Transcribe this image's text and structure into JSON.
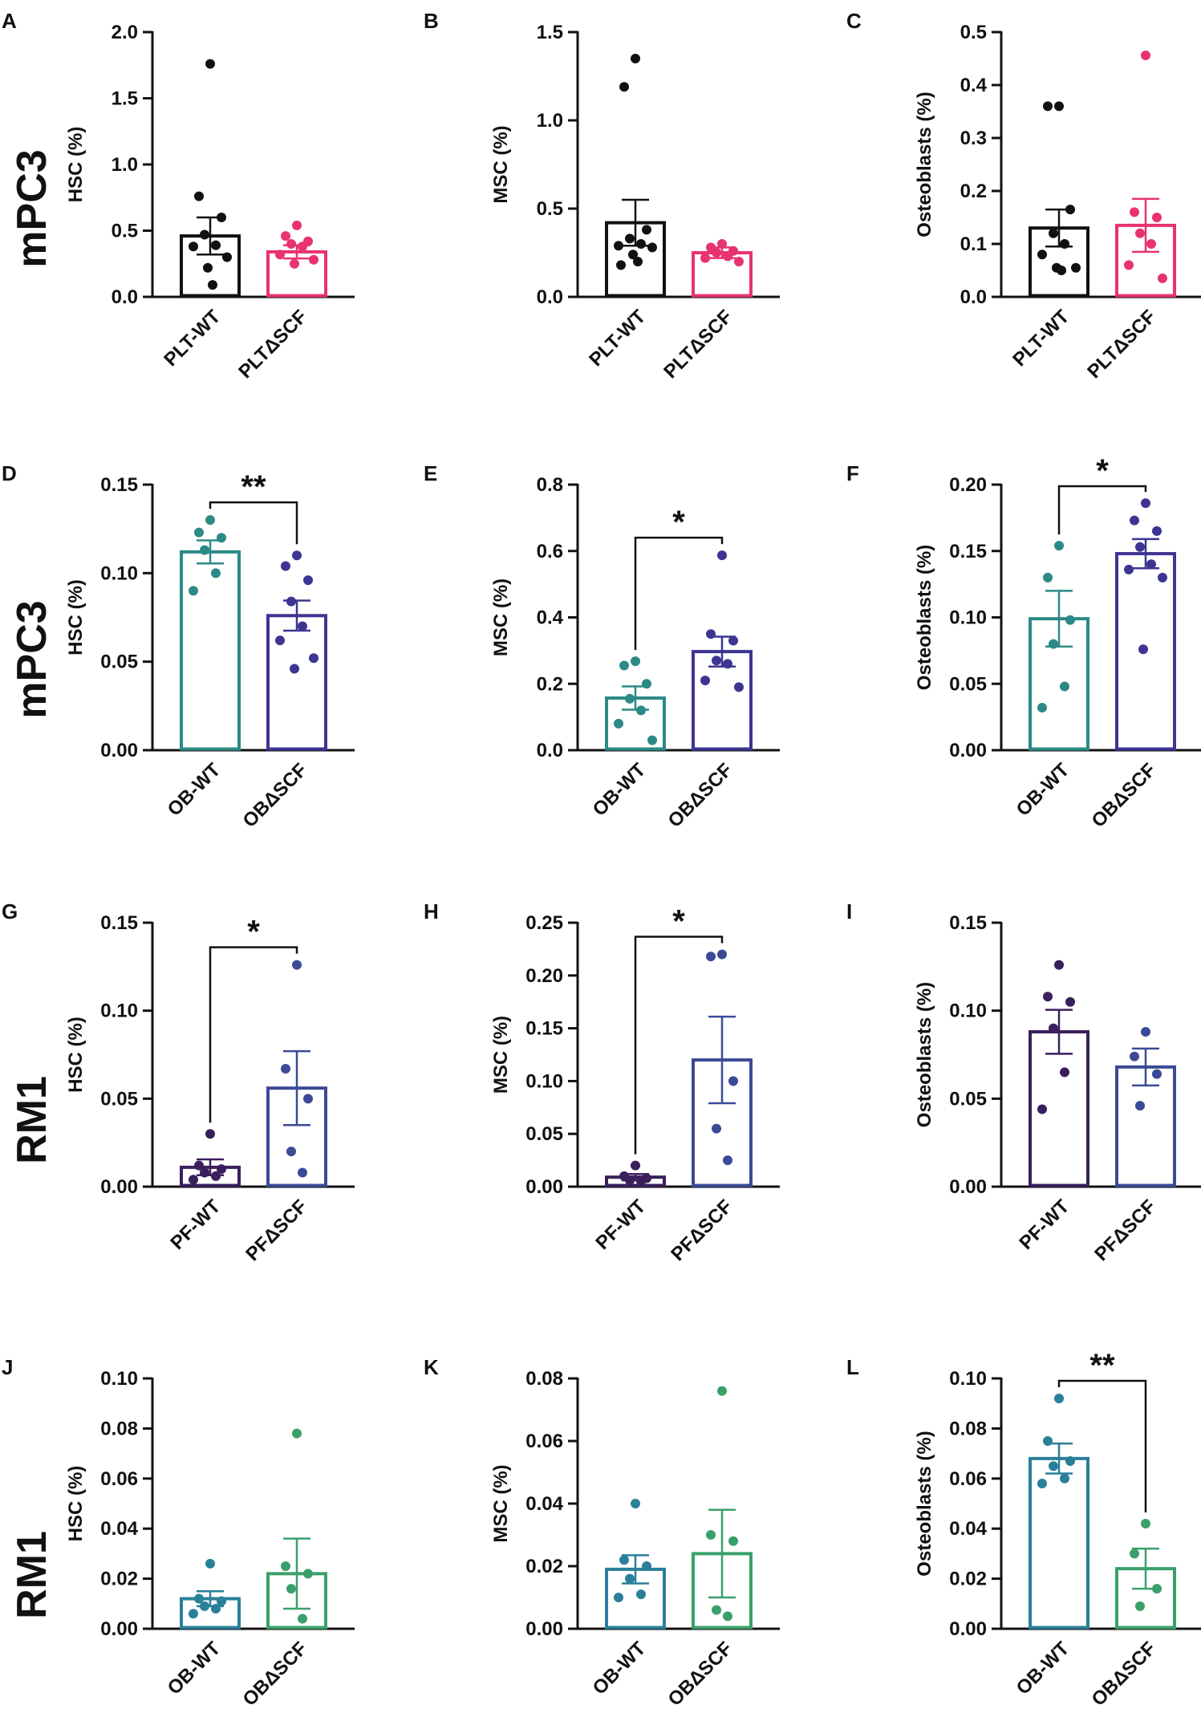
{
  "row_labels": [
    "mPC3",
    "mPC3",
    "RM1",
    "RM1"
  ],
  "chart_data": [
    {
      "panel": "A",
      "type": "bar",
      "ylabel": "HSC (%)",
      "ylim": [
        0,
        2.0
      ],
      "ticks": [
        "0.0",
        "0.5",
        "1.0",
        "1.5",
        "2.0"
      ],
      "categories": [
        "PLT-WT",
        "PLTΔSCF"
      ],
      "colors": [
        "#111111",
        "#e8336f"
      ],
      "values": [
        0.46,
        0.34
      ],
      "sem": [
        0.14,
        0.05
      ],
      "points": [
        [
          1.76,
          0.76,
          0.6,
          0.47,
          0.39,
          0.38,
          0.3,
          0.22,
          0.09
        ],
        [
          0.54,
          0.46,
          0.42,
          0.4,
          0.38,
          0.32,
          0.28,
          0.25
        ]
      ],
      "sig": ""
    },
    {
      "panel": "B",
      "type": "bar",
      "ylabel": "MSC (%)",
      "ylim": [
        0,
        1.5
      ],
      "ticks": [
        "0.0",
        "0.5",
        "1.0",
        "1.5"
      ],
      "categories": [
        "PLT-WT",
        "PLTΔSCF"
      ],
      "colors": [
        "#111111",
        "#e8336f"
      ],
      "values": [
        0.42,
        0.25
      ],
      "sem": [
        0.13,
        0.03
      ],
      "points": [
        [
          1.35,
          1.19,
          0.38,
          0.33,
          0.3,
          0.29,
          0.28,
          0.24,
          0.2,
          0.18
        ],
        [
          0.3,
          0.28,
          0.26,
          0.25,
          0.23,
          0.22,
          0.2
        ]
      ],
      "sig": ""
    },
    {
      "panel": "C",
      "type": "bar",
      "ylabel": "Osteoblasts  (%)",
      "ylim": [
        0,
        0.5
      ],
      "ticks": [
        "0.0",
        "0.1",
        "0.2",
        "0.3",
        "0.4",
        "0.5"
      ],
      "categories": [
        "PLT-WT",
        "PLTΔSCF"
      ],
      "colors": [
        "#111111",
        "#e8336f"
      ],
      "values": [
        0.13,
        0.135
      ],
      "sem": [
        0.035,
        0.05
      ],
      "points": [
        [
          0.36,
          0.36,
          0.165,
          0.12,
          0.1,
          0.08,
          0.055,
          0.055,
          0.05
        ],
        [
          0.456,
          0.16,
          0.15,
          0.12,
          0.1,
          0.06,
          0.035
        ]
      ],
      "sig": ""
    },
    {
      "panel": "D",
      "type": "bar",
      "ylabel": "HSC (%)",
      "ylim": [
        0,
        0.15
      ],
      "ticks": [
        "0.00",
        "0.05",
        "0.10",
        "0.15"
      ],
      "categories": [
        "OB-WT",
        "OBΔSCF"
      ],
      "colors": [
        "#2b8a86",
        "#3d3591"
      ],
      "values": [
        0.112,
        0.076
      ],
      "sem": [
        0.0065,
        0.0085
      ],
      "points": [
        [
          0.13,
          0.123,
          0.12,
          0.113,
          0.1,
          0.09
        ],
        [
          0.11,
          0.104,
          0.096,
          0.084,
          0.07,
          0.062,
          0.052,
          0.046
        ]
      ],
      "sig": "**"
    },
    {
      "panel": "E",
      "type": "bar",
      "ylabel": "MSC (%)",
      "ylim": [
        0,
        0.8
      ],
      "ticks": [
        "0.0",
        "0.2",
        "0.4",
        "0.6",
        "0.8"
      ],
      "categories": [
        "OB-WT",
        "OBΔSCF"
      ],
      "colors": [
        "#2b8a86",
        "#3d3591"
      ],
      "values": [
        0.157,
        0.297
      ],
      "sem": [
        0.035,
        0.045
      ],
      "points": [
        [
          0.268,
          0.255,
          0.2,
          0.155,
          0.12,
          0.08,
          0.03
        ],
        [
          0.587,
          0.35,
          0.33,
          0.27,
          0.26,
          0.21,
          0.19
        ]
      ],
      "sig": "*"
    },
    {
      "panel": "F",
      "type": "bar",
      "ylabel": "Osteoblasts  (%)",
      "ylim": [
        0,
        0.2
      ],
      "ticks": [
        "0.00",
        "0.05",
        "0.10",
        "0.15",
        "0.20"
      ],
      "categories": [
        "OB-WT",
        "OBΔSCF"
      ],
      "colors": [
        "#2b8a86",
        "#3d3591"
      ],
      "values": [
        0.099,
        0.148
      ],
      "sem": [
        0.021,
        0.011
      ],
      "points": [
        [
          0.154,
          0.13,
          0.098,
          0.08,
          0.048,
          0.032
        ],
        [
          0.186,
          0.173,
          0.165,
          0.153,
          0.14,
          0.136,
          0.13,
          0.076
        ]
      ],
      "sig": "*"
    },
    {
      "panel": "G",
      "type": "bar",
      "ylabel": "HSC (%)",
      "ylim": [
        0,
        0.15
      ],
      "ticks": [
        "0.00",
        "0.05",
        "0.10",
        "0.15"
      ],
      "categories": [
        "PF-WT",
        "PFΔSCF"
      ],
      "colors": [
        "#3a1f5c",
        "#3b4a96"
      ],
      "values": [
        0.011,
        0.056
      ],
      "sem": [
        0.0045,
        0.021
      ],
      "points": [
        [
          0.03,
          0.012,
          0.01,
          0.008,
          0.006,
          0.004
        ],
        [
          0.126,
          0.067,
          0.05,
          0.02,
          0.008
        ]
      ],
      "sig": "*"
    },
    {
      "panel": "H",
      "type": "bar",
      "ylabel": "MSC (%)",
      "ylim": [
        0,
        0.25
      ],
      "ticks": [
        "0.00",
        "0.05",
        "0.10",
        "0.15",
        "0.20",
        "0.25"
      ],
      "categories": [
        "PF-WT",
        "PFΔSCF"
      ],
      "colors": [
        "#3a1f5c",
        "#3b4a96"
      ],
      "values": [
        0.009,
        0.12
      ],
      "sem": [
        0.003,
        0.041
      ],
      "points": [
        [
          0.02,
          0.01,
          0.008,
          0.006,
          0.005
        ],
        [
          0.22,
          0.218,
          0.1,
          0.055,
          0.025
        ]
      ],
      "sig": "*"
    },
    {
      "panel": "I",
      "type": "bar",
      "ylabel": "Osteoblasts  (%)",
      "ylim": [
        0,
        0.15
      ],
      "ticks": [
        "0.00",
        "0.05",
        "0.10",
        "0.15"
      ],
      "categories": [
        "PF-WT",
        "PFΔSCF"
      ],
      "colors": [
        "#3a1f5c",
        "#3b4a96"
      ],
      "values": [
        0.088,
        0.068
      ],
      "sem": [
        0.0125,
        0.0105
      ],
      "points": [
        [
          0.126,
          0.108,
          0.105,
          0.09,
          0.065,
          0.044
        ],
        [
          0.088,
          0.074,
          0.064,
          0.046
        ]
      ],
      "sig": ""
    },
    {
      "panel": "J",
      "type": "bar",
      "ylabel": "HSC (%)",
      "ylim": [
        0,
        0.1
      ],
      "ticks": [
        "0.00",
        "0.02",
        "0.04",
        "0.06",
        "0.08",
        "0.10"
      ],
      "categories": [
        "OB-WT",
        "OBΔSCF"
      ],
      "colors": [
        "#2a7f99",
        "#3aa06a"
      ],
      "values": [
        0.012,
        0.022
      ],
      "sem": [
        0.003,
        0.014
      ],
      "points": [
        [
          0.026,
          0.012,
          0.011,
          0.009,
          0.008,
          0.006
        ],
        [
          0.078,
          0.025,
          0.022,
          0.016,
          0.004
        ]
      ],
      "sig": ""
    },
    {
      "panel": "K",
      "type": "bar",
      "ylabel": "MSC (%)",
      "ylim": [
        0,
        0.08
      ],
      "ticks": [
        "0.00",
        "0.02",
        "0.04",
        "0.06",
        "0.08"
      ],
      "categories": [
        "OB-WT",
        "OBΔSCF"
      ],
      "colors": [
        "#2a7f99",
        "#3aa06a"
      ],
      "values": [
        0.019,
        0.024
      ],
      "sem": [
        0.0045,
        0.014
      ],
      "points": [
        [
          0.04,
          0.022,
          0.02,
          0.016,
          0.011,
          0.01
        ],
        [
          0.076,
          0.03,
          0.028,
          0.006,
          0.004
        ]
      ],
      "sig": ""
    },
    {
      "panel": "L",
      "type": "bar",
      "ylabel": "Osteoblasts  (%)",
      "ylim": [
        0,
        0.1
      ],
      "ticks": [
        "0.00",
        "0.02",
        "0.04",
        "0.06",
        "0.08",
        "0.10"
      ],
      "categories": [
        "OB-WT",
        "OBΔSCF"
      ],
      "colors": [
        "#2a7f99",
        "#3aa06a"
      ],
      "values": [
        0.068,
        0.024
      ],
      "sem": [
        0.006,
        0.008
      ],
      "points": [
        [
          0.092,
          0.075,
          0.067,
          0.065,
          0.06,
          0.058
        ],
        [
          0.042,
          0.03,
          0.016,
          0.009
        ]
      ],
      "sig": "**"
    }
  ]
}
